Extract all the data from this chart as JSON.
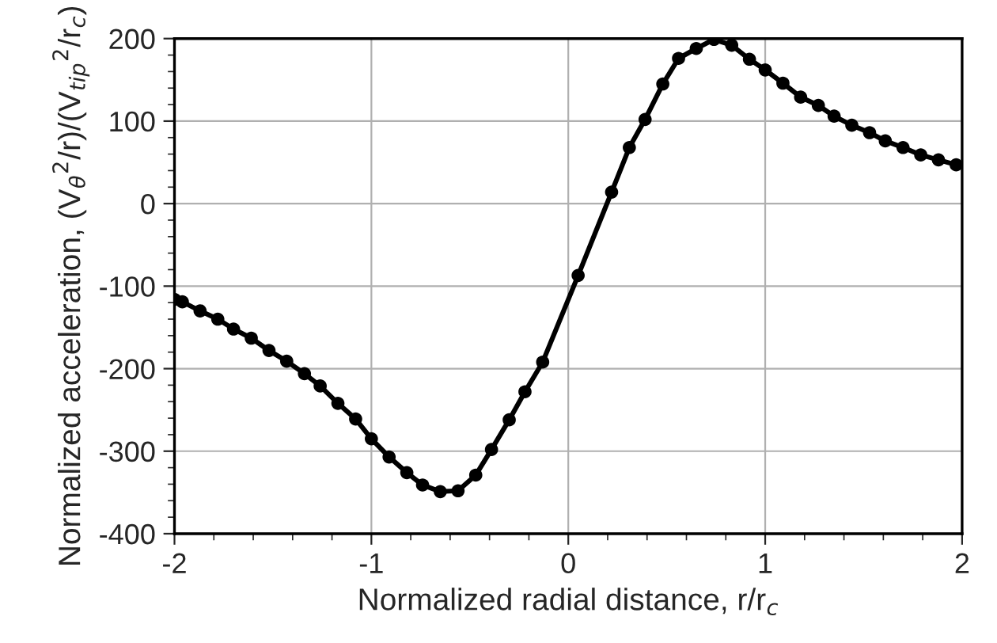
{
  "chart_data": {
    "type": "line",
    "xlabel": "Normalized radial distance, r/r$_{c}$",
    "ylabel": "Normalized acceleration, (V$_{θ}$$^{2}$/r)/(V$_{tip}$$^{2}$/r$_{c}$)",
    "xlim": [
      -2,
      2
    ],
    "xticks": [
      -2,
      -1,
      0,
      1,
      2
    ],
    "ylim": [
      -400,
      200
    ],
    "yticks": [
      -400,
      -300,
      -200,
      -100,
      0,
      100,
      200
    ],
    "grid": true,
    "marker": "circle",
    "line_style": "solid",
    "series": [
      {
        "color": "#000000",
        "x": [
          -2.0,
          -1.96,
          -1.87,
          -1.78,
          -1.7,
          -1.61,
          -1.52,
          -1.43,
          -1.34,
          -1.26,
          -1.17,
          -1.08,
          -1.0,
          -0.91,
          -0.82,
          -0.74,
          -0.65,
          -0.56,
          -0.47,
          -0.39,
          -0.3,
          -0.22,
          -0.13,
          0.05,
          0.22,
          0.31,
          0.39,
          0.48,
          0.56,
          0.65,
          0.74,
          0.83,
          0.92,
          1.0,
          1.09,
          1.18,
          1.27,
          1.35,
          1.44,
          1.53,
          1.61,
          1.7,
          1.79,
          1.88,
          1.97
        ],
        "values": [
          -116,
          -119,
          -130,
          -140,
          -152,
          -163,
          -178,
          -191,
          -206,
          -221,
          -242,
          -261,
          -285,
          -307,
          -326,
          -341,
          -349,
          -348,
          -329,
          -298,
          -262,
          -228,
          -192,
          -87,
          14,
          68,
          102,
          145,
          176,
          188,
          199,
          192,
          175,
          162,
          146,
          129,
          119,
          106,
          95,
          86,
          76,
          68,
          59,
          53,
          47
        ]
      }
    ]
  }
}
